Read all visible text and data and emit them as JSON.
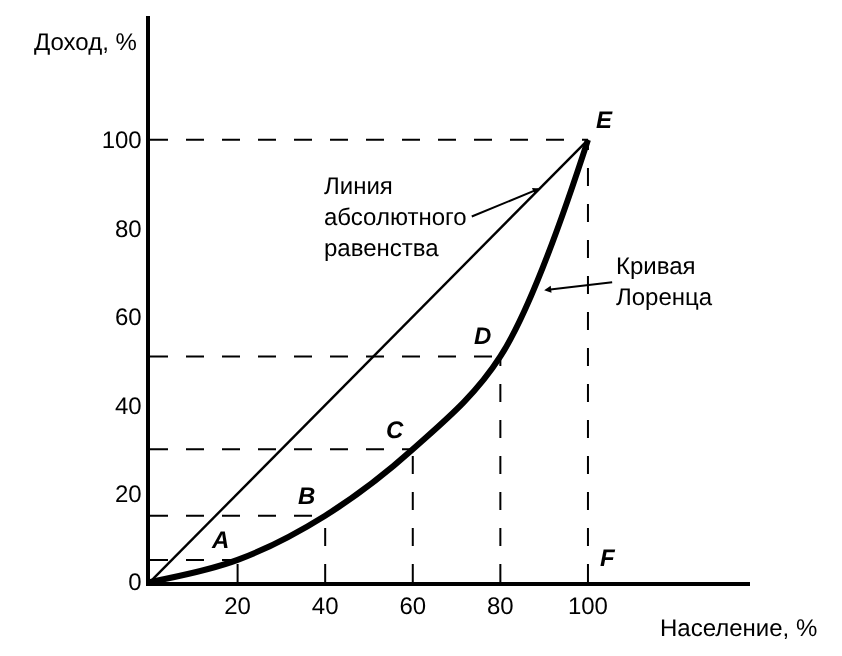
{
  "chart_data": {
    "type": "line",
    "xlabel": "Население, %",
    "ylabel": "Доход, %",
    "xlim": [
      0,
      137
    ],
    "ylim": [
      0,
      128
    ],
    "xticks": [
      20,
      40,
      60,
      80,
      100
    ],
    "yticks": [
      0,
      20,
      40,
      60,
      80,
      100
    ],
    "legend": false,
    "marker": "none",
    "series": [
      {
        "color": "#000000",
        "x": [
          0,
          100
        ],
        "values": [
          0,
          100
        ],
        "line_style": "solid"
      },
      {
        "color": "#000000",
        "x": [
          0,
          20,
          40,
          60,
          80,
          100
        ],
        "values": [
          0,
          5,
          15,
          30,
          51,
          100
        ],
        "line_style": "solid"
      }
    ],
    "annotations": [
      {
        "text": "A",
        "x": 20,
        "y": 5
      },
      {
        "text": "B",
        "x": 40,
        "y": 15
      },
      {
        "text": "C",
        "x": 60,
        "y": 30
      },
      {
        "text": "D",
        "x": 80,
        "y": 51
      },
      {
        "text": "E",
        "x": 100,
        "y": 100
      },
      "F",
      {
        "text": "Линия\nабсолютного\nравенства",
        "x": 89,
        "y": 89
      },
      {
        "text": "Кривая\nЛоренца",
        "x": 90,
        "y": 66
      }
    ]
  }
}
